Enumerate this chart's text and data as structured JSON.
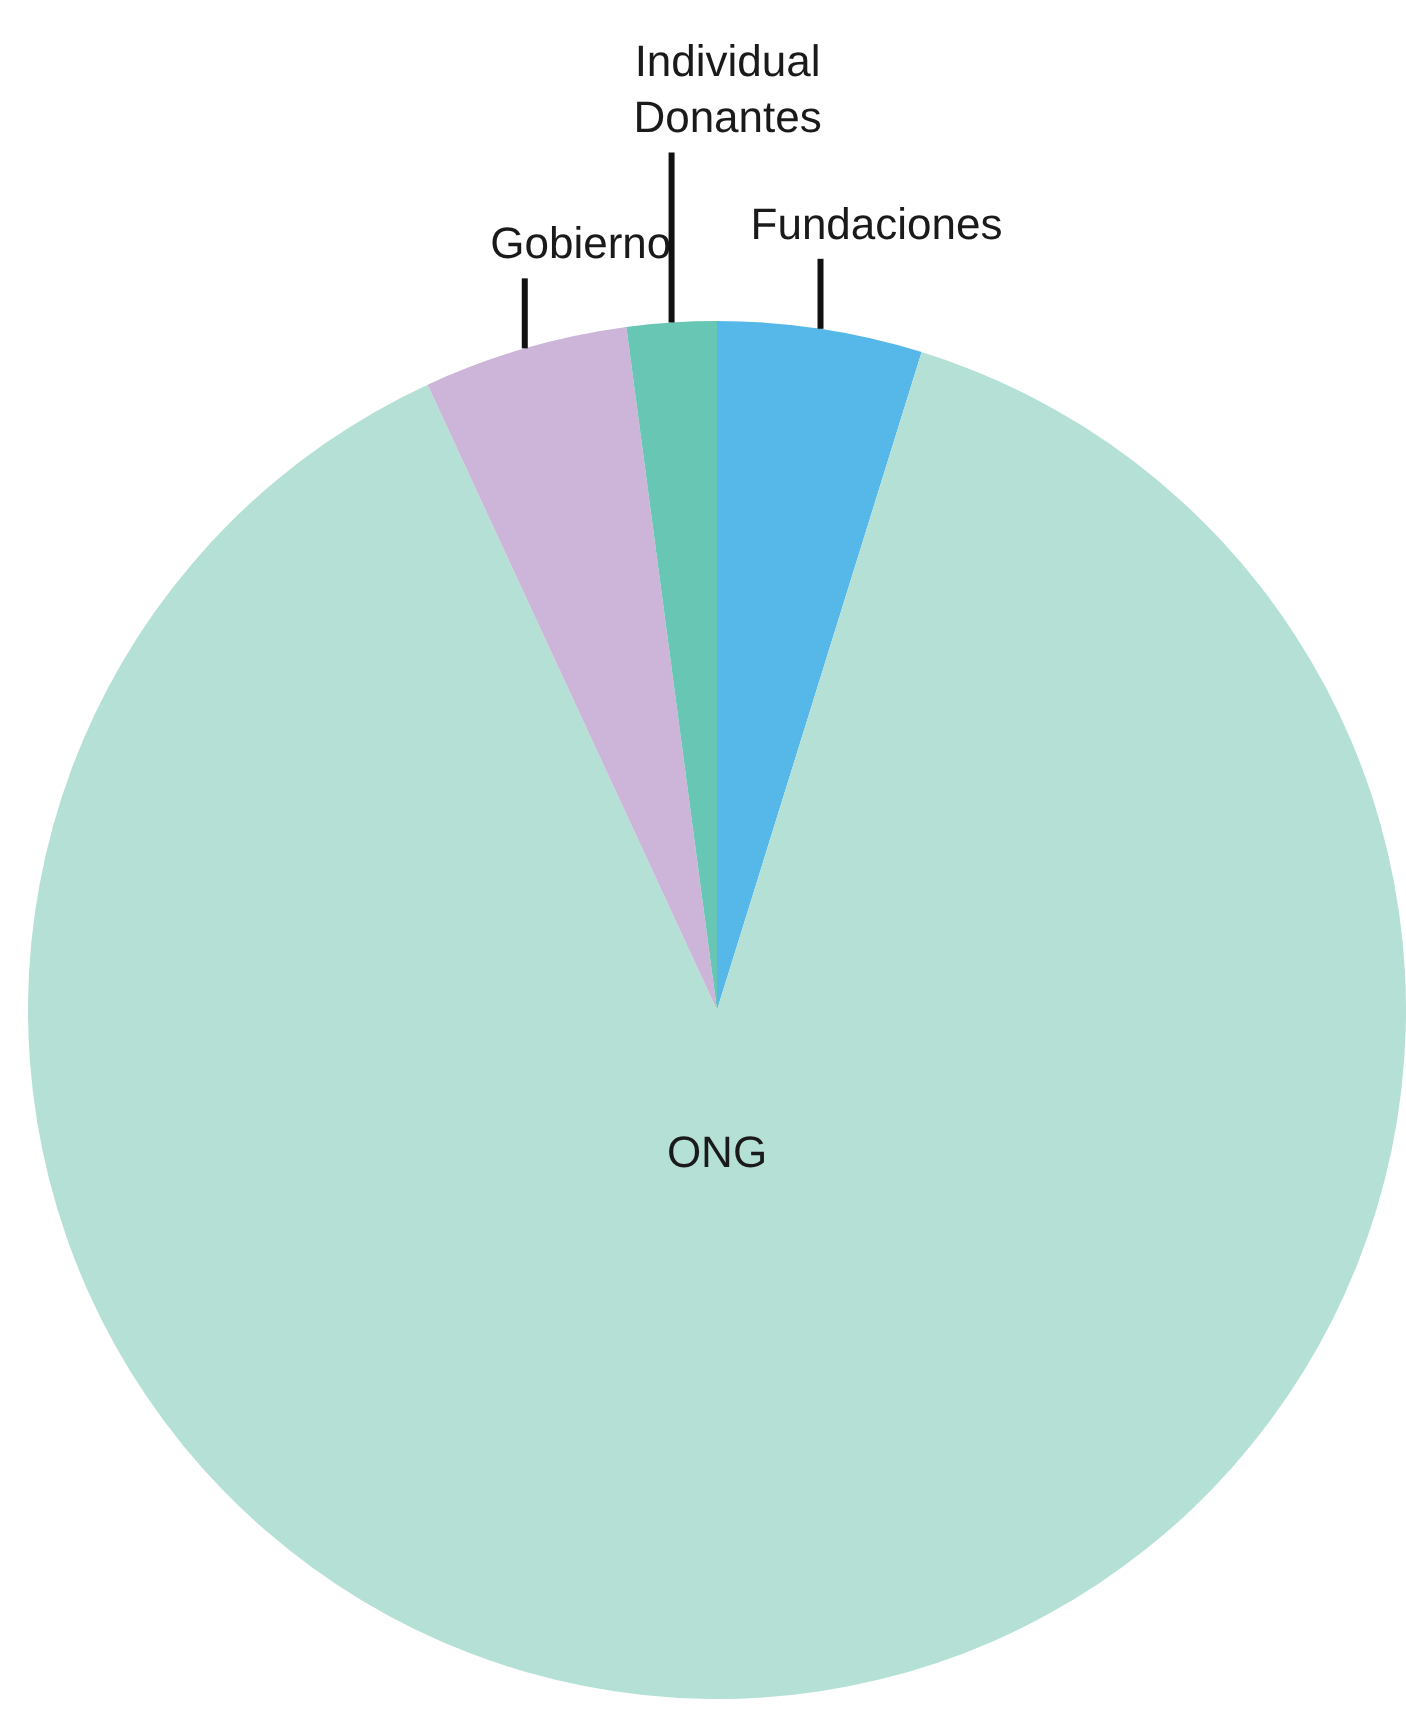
{
  "chart_data": {
    "type": "pie",
    "categories": [
      "Fundaciones",
      "ONG",
      "Gobierno",
      "Individual Donantes"
    ],
    "values": [
      4.8,
      88.3,
      4.8,
      2.1
    ],
    "colors": [
      "#55b8e8",
      "#b5e0d6",
      "#ccb5d9",
      "#68c6b4"
    ],
    "legend": false
  }
}
